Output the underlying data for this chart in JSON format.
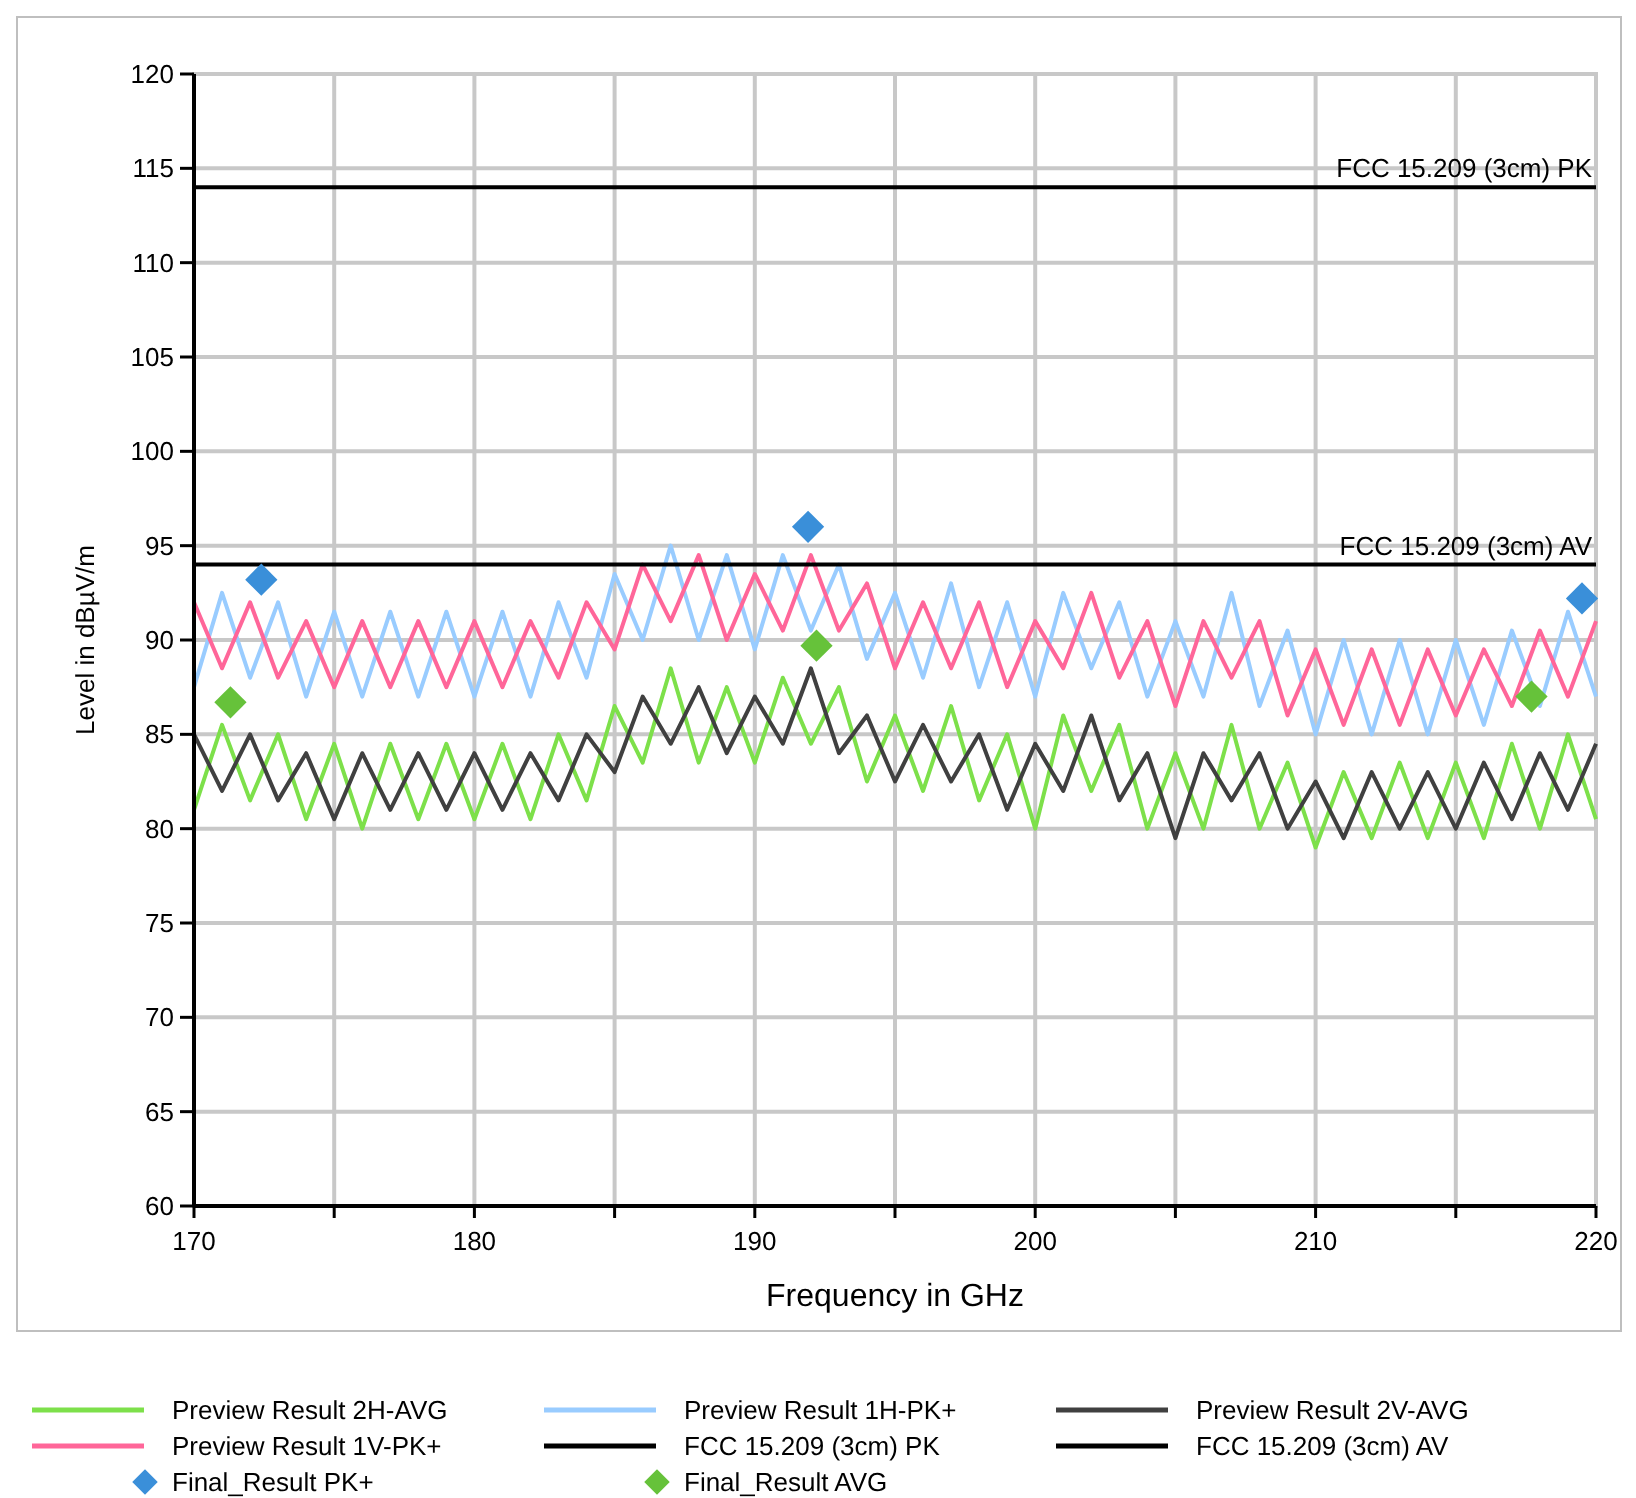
{
  "chart_data": {
    "type": "line",
    "xlabel": "Frequency in GHz",
    "ylabel": "Level in dBµV/m",
    "xlim": [
      170,
      220
    ],
    "ylim": [
      60,
      120
    ],
    "xticks": [
      170,
      {
        "value": 175,
        "label": null
      },
      180,
      {
        "value": 185,
        "label": null
      },
      190,
      {
        "value": 195,
        "label": null
      },
      200,
      {
        "value": 205,
        "label": null
      },
      210,
      {
        "value": 215,
        "label": null
      },
      220
    ],
    "yticks": [
      60,
      65,
      70,
      75,
      80,
      85,
      90,
      95,
      100,
      105,
      110,
      115,
      120
    ],
    "grid": true,
    "legend": "bottom",
    "x": [
      170,
      171,
      172,
      173,
      174,
      175,
      176,
      177,
      178,
      179,
      180,
      181,
      182,
      183,
      184,
      185,
      186,
      187,
      188,
      189,
      190,
      191,
      192,
      193,
      194,
      195,
      196,
      197,
      198,
      199,
      200,
      201,
      202,
      203,
      204,
      205,
      206,
      207,
      208,
      209,
      210,
      211,
      212,
      213,
      214,
      215,
      216,
      217,
      218,
      219,
      220
    ],
    "series": [
      {
        "name": "Preview Result 2H-AVG",
        "color": "#7de04a",
        "values": [
          81,
          85.5,
          81.5,
          85,
          80.5,
          84.5,
          80,
          84.5,
          80.5,
          84.5,
          80.5,
          84.5,
          80.5,
          85,
          81.5,
          86.5,
          83.5,
          88.5,
          83.5,
          87.5,
          83.5,
          88,
          84.5,
          87.5,
          82.5,
          86,
          82,
          86.5,
          81.5,
          85,
          80,
          86,
          82,
          85.5,
          80,
          84,
          80,
          85.5,
          80,
          83.5,
          79,
          83,
          79.5,
          83.5,
          79.5,
          83.5,
          79.5,
          84.5,
          80,
          85,
          80.5
        ]
      },
      {
        "name": "Preview Result 1H-PK+",
        "color": "#99ccff",
        "values": [
          87.5,
          92.5,
          88,
          92,
          87,
          91.5,
          87,
          91.5,
          87,
          91.5,
          87,
          91.5,
          87,
          92,
          88,
          93.5,
          90,
          95,
          90,
          94.5,
          89.5,
          94.5,
          90.5,
          94,
          89,
          92.5,
          88,
          93,
          87.5,
          92,
          87,
          92.5,
          88.5,
          92,
          87,
          91,
          87,
          92.5,
          86.5,
          90.5,
          85,
          90,
          85,
          90,
          85,
          90,
          85.5,
          90.5,
          86.5,
          91.5,
          87
        ]
      },
      {
        "name": "Preview Result 2V-AVG",
        "color": "#404040",
        "values": [
          85,
          82,
          85,
          81.5,
          84,
          80.5,
          84,
          81,
          84,
          81,
          84,
          81,
          84,
          81.5,
          85,
          83,
          87,
          84.5,
          87.5,
          84,
          87,
          84.5,
          88.5,
          84,
          86,
          82.5,
          85.5,
          82.5,
          85,
          81,
          84.5,
          82,
          86,
          81.5,
          84,
          79.5,
          84,
          81.5,
          84,
          80,
          82.5,
          79.5,
          83,
          80,
          83,
          80,
          83.5,
          80.5,
          84,
          81,
          84.5
        ]
      },
      {
        "name": "Preview Result 1V-PK+",
        "color": "#ff6699",
        "values": [
          92,
          88.5,
          92,
          88,
          91,
          87.5,
          91,
          87.5,
          91,
          87.5,
          91,
          87.5,
          91,
          88,
          92,
          89.5,
          94,
          91,
          94.5,
          90,
          93.5,
          90.5,
          94.5,
          90.5,
          93,
          88.5,
          92,
          88.5,
          92,
          87.5,
          91,
          88.5,
          92.5,
          88,
          91,
          86.5,
          91,
          88,
          91,
          86,
          89.5,
          85.5,
          89.5,
          85.5,
          89.5,
          86,
          89.5,
          86.5,
          90.5,
          87,
          91
        ]
      },
      {
        "name": "FCC 15.209 (3cm) PK",
        "color": "#000000",
        "x": [
          170,
          220
        ],
        "values": [
          114,
          114
        ]
      },
      {
        "name": "FCC 15.209 (3cm) AV",
        "color": "#000000",
        "x": [
          170,
          220
        ],
        "values": [
          94,
          94
        ]
      },
      {
        "name": "Final_Result PK+",
        "type": "scatter",
        "marker": "diamond",
        "color": "#3a8fd9",
        "x": [
          172.4,
          191.9,
          219.5
        ],
        "values": [
          93.2,
          96,
          92.2
        ]
      },
      {
        "name": "Final_Result AVG",
        "type": "scatter",
        "marker": "diamond",
        "color": "#66c23a",
        "x": [
          171.3,
          192.2,
          217.7
        ],
        "values": [
          86.7,
          89.7,
          87
        ]
      }
    ],
    "annotations": [
      {
        "text": "FCC 15.209 (3cm) PK",
        "x": 220,
        "y": 114
      },
      {
        "text": "FCC 15.209 (3cm) AV",
        "x": 220,
        "y": 94
      }
    ]
  }
}
